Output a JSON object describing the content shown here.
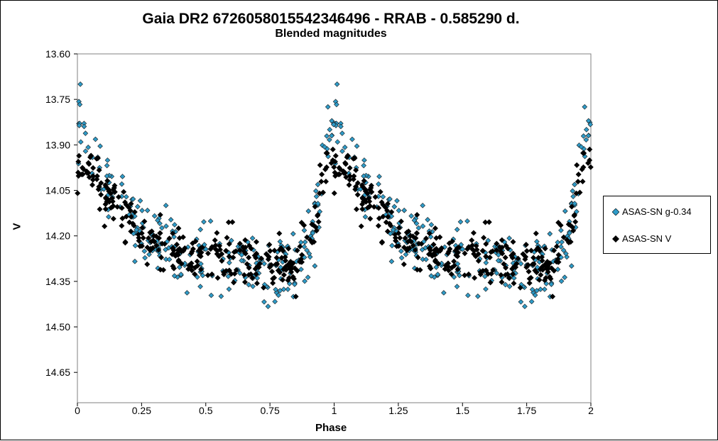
{
  "chart_data": {
    "type": "scatter",
    "title": "Gaia DR2 6726058015542346496  - RRAB - 0.585290  d.",
    "subtitle": "Blended magnitudes",
    "xlabel": "Phase",
    "ylabel": "V",
    "xlim": [
      0,
      2
    ],
    "ylim": [
      14.75,
      13.6
    ],
    "y_inverted": true,
    "x_ticks": [
      "0",
      "0.25",
      "0.5",
      "0.75",
      "1",
      "1.25",
      "1.5",
      "1.75",
      "2"
    ],
    "y_ticks": [
      "13.60",
      "13.75",
      "13.90",
      "14.05",
      "14.20",
      "14.35",
      "14.50",
      "14.65"
    ],
    "grid": false,
    "legend_position": "right",
    "period_days": 0.58529,
    "series": [
      {
        "name": "ASAS-SN g-0.34",
        "color": "#2E9BC8",
        "marker": "diamond",
        "phase_mag_envelope": [
          {
            "phase": 0.0,
            "mag": 13.84
          },
          {
            "phase": 0.05,
            "mag": 13.9
          },
          {
            "phase": 0.1,
            "mag": 13.98
          },
          {
            "phase": 0.15,
            "mag": 14.05
          },
          {
            "phase": 0.2,
            "mag": 14.11
          },
          {
            "phase": 0.25,
            "mag": 14.17
          },
          {
            "phase": 0.3,
            "mag": 14.21
          },
          {
            "phase": 0.4,
            "mag": 14.26
          },
          {
            "phase": 0.5,
            "mag": 14.29
          },
          {
            "phase": 0.6,
            "mag": 14.3
          },
          {
            "phase": 0.7,
            "mag": 14.31
          },
          {
            "phase": 0.8,
            "mag": 14.32
          },
          {
            "phase": 0.85,
            "mag": 14.32
          },
          {
            "phase": 0.9,
            "mag": 14.24
          },
          {
            "phase": 0.93,
            "mag": 14.12
          },
          {
            "phase": 0.96,
            "mag": 13.97
          },
          {
            "phase": 0.98,
            "mag": 13.88
          },
          {
            "phase": 1.0,
            "mag": 13.84
          }
        ]
      },
      {
        "name": "ASAS-SN V",
        "color": "#000000",
        "marker": "diamond",
        "phase_mag_envelope": [
          {
            "phase": 0.0,
            "mag": 13.95
          },
          {
            "phase": 0.05,
            "mag": 13.98
          },
          {
            "phase": 0.1,
            "mag": 14.04
          },
          {
            "phase": 0.15,
            "mag": 14.09
          },
          {
            "phase": 0.2,
            "mag": 14.14
          },
          {
            "phase": 0.25,
            "mag": 14.19
          },
          {
            "phase": 0.3,
            "mag": 14.22
          },
          {
            "phase": 0.4,
            "mag": 14.25
          },
          {
            "phase": 0.5,
            "mag": 14.26
          },
          {
            "phase": 0.6,
            "mag": 14.27
          },
          {
            "phase": 0.7,
            "mag": 14.28
          },
          {
            "phase": 0.8,
            "mag": 14.29
          },
          {
            "phase": 0.85,
            "mag": 14.29
          },
          {
            "phase": 0.9,
            "mag": 14.23
          },
          {
            "phase": 0.93,
            "mag": 14.13
          },
          {
            "phase": 0.96,
            "mag": 14.01
          },
          {
            "phase": 0.98,
            "mag": 13.96
          },
          {
            "phase": 1.0,
            "mag": 13.95
          }
        ]
      }
    ]
  }
}
